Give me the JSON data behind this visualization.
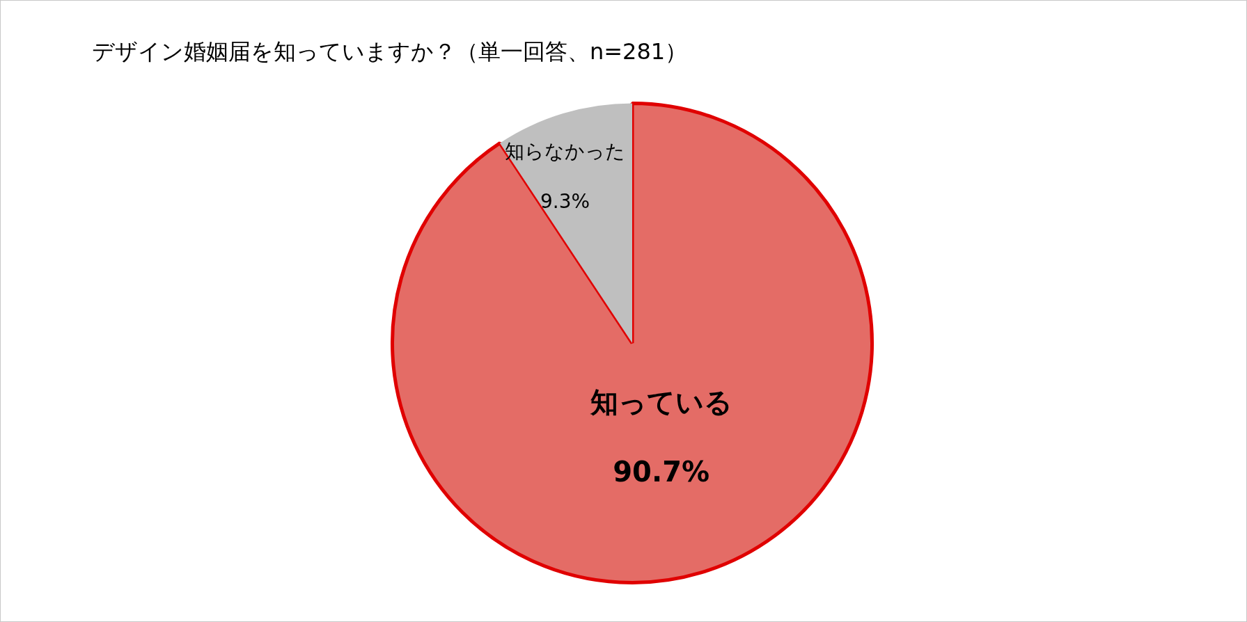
{
  "chart_data": {
    "type": "pie",
    "title": "デザイン婚姻届を知っていますか？（単一回答、n=281）",
    "categories": [
      "知っている",
      "知らなかった"
    ],
    "values": [
      90.7,
      9.3
    ],
    "colors": [
      "#e46c66",
      "#bfbfbf"
    ],
    "value_labels": [
      "90.7%",
      "9.3%"
    ],
    "legend": false
  }
}
